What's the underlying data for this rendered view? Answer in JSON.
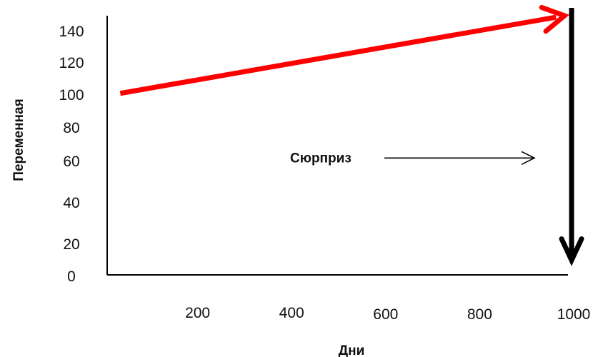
{
  "chart_data": {
    "type": "line",
    "xlabel": "Дни",
    "ylabel": "Переменная",
    "x_ticks": [
      200,
      400,
      600,
      800,
      1000
    ],
    "y_ticks": [
      0,
      20,
      40,
      60,
      80,
      100,
      120,
      140
    ],
    "grid": false,
    "series": [
      {
        "color": "#ff0000",
        "points": [
          {
            "x": 40,
            "y": 101
          },
          {
            "x": 985,
            "y": 150
          }
        ]
      }
    ],
    "annotations": [
      {
        "kind": "arrow",
        "color": "#000000",
        "from": {
          "x": 1000,
          "y": 155
        },
        "to": {
          "x": 1000,
          "y": 10
        }
      },
      {
        "kind": "label",
        "text": "Сюрприз",
        "at": {
          "x": 440,
          "y": 62
        },
        "pointer_to": {
          "x": 920,
          "y": 62
        }
      }
    ]
  }
}
